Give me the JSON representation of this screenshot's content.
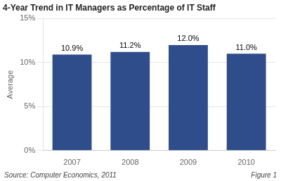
{
  "chart_data": {
    "type": "bar",
    "title": "4-Year Trend in IT Managers as Percentage of IT Staff",
    "categories": [
      "2007",
      "2008",
      "2009",
      "2010"
    ],
    "values": [
      10.9,
      11.2,
      12.0,
      11.0
    ],
    "value_labels": [
      "10.9%",
      "11.2%",
      "12.0%",
      "11.0%"
    ],
    "data_labels": true,
    "color": "#2e4d8a",
    "ylabel": "Average",
    "ylim": [
      0,
      15
    ],
    "yticks": [
      {
        "value": 0,
        "label": "0%"
      },
      {
        "value": 5,
        "label": "5%"
      },
      {
        "value": 10,
        "label": "10%"
      },
      {
        "value": 15,
        "label": "15%"
      }
    ],
    "grid": true,
    "annotations": [
      "Source: Computer Economics, 2011",
      "Figure 1"
    ]
  }
}
